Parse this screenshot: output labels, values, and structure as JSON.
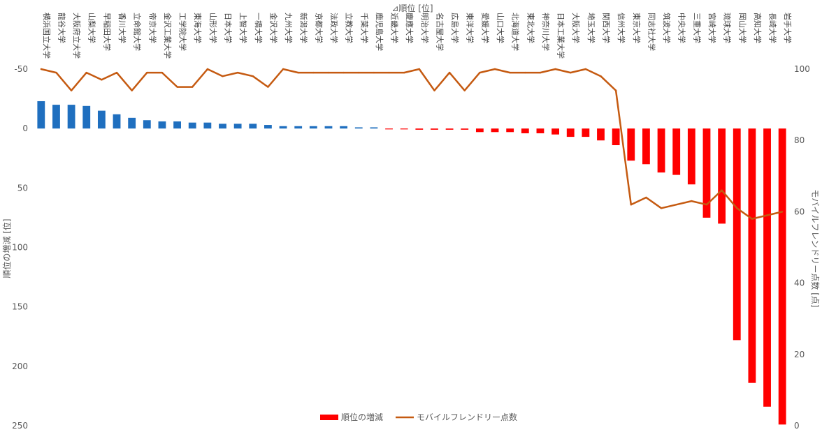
{
  "chart_data": {
    "type": "bar",
    "title": "⊿順位 [位]",
    "ylabel": "順位の増減 [位]",
    "y2label": "モバイルフレンドリー点数 [点]",
    "ylim": [
      -50,
      250
    ],
    "y_reversed": true,
    "y_ticks": [
      "-50",
      "0",
      "50",
      "100",
      "150",
      "200",
      "250"
    ],
    "y2lim": [
      0,
      100
    ],
    "y2_ticks": [
      "0",
      "20",
      "40",
      "60",
      "80",
      "100"
    ],
    "grid": false,
    "legend_position": "bottom",
    "categories": [
      "横浜国立大学",
      "龍谷大学",
      "大阪府立大学",
      "山梨大学",
      "早稲田大学",
      "香川大学",
      "立命館大学",
      "帝京大学",
      "金沢工業大学",
      "工学院大学",
      "東海大学",
      "山形大学",
      "日本大学",
      "上智大学",
      "一橋大学",
      "金沢大学",
      "九州大学",
      "新潟大学",
      "京都大学",
      "法政大学",
      "立教大学",
      "千葉大学",
      "鹿児島大学",
      "近畿大学",
      "慶應大学",
      "明治大学",
      "名古屋大学",
      "広島大学",
      "東洋大学",
      "愛媛大学",
      "山口大学",
      "北海道大学",
      "東北大学",
      "神奈川大学",
      "日本工業大学",
      "大阪大学",
      "埼玉大学",
      "関西大学",
      "信州大学",
      "東京大学",
      "同志社大学",
      "筑波大学",
      "中央大学",
      "三重大学",
      "宮崎大学",
      "琉球大学",
      "岡山大学",
      "高知大学",
      "長崎大学",
      "岩手大学"
    ],
    "series": [
      {
        "name": "順位の増減",
        "axis": "left",
        "kind": "bar",
        "values": [
          -23,
          -20,
          -20,
          -19,
          -15,
          -12,
          -9,
          -7,
          -6,
          -6,
          -5,
          -5,
          -4,
          -4,
          -4,
          -3,
          -2,
          -2,
          -2,
          -2,
          -2,
          -1,
          -1,
          0,
          0,
          1,
          1,
          1,
          1,
          3,
          3,
          3,
          4,
          4,
          5,
          7,
          7,
          10,
          14,
          27,
          30,
          37,
          39,
          47,
          75,
          80,
          178,
          214,
          234,
          249
        ],
        "color_negative": "#1F6FBF",
        "color_positive": "#FF0000"
      },
      {
        "name": "モバイルフレンドリー点数",
        "axis": "right",
        "kind": "line",
        "values": [
          100,
          99,
          94,
          99,
          97,
          99,
          94,
          99,
          99,
          95,
          95,
          100,
          98,
          99,
          98,
          95,
          100,
          99,
          99,
          99,
          99,
          99,
          99,
          99,
          99,
          100,
          94,
          99,
          94,
          99,
          100,
          99,
          99,
          99,
          100,
          99,
          100,
          98,
          94,
          62,
          64,
          61,
          62,
          63,
          62,
          66,
          61,
          58,
          59,
          60
        ],
        "color": "#C55A11"
      }
    ]
  },
  "legend": {
    "bar_label": "順位の増減",
    "line_label": "モバイルフレンドリー点数"
  }
}
